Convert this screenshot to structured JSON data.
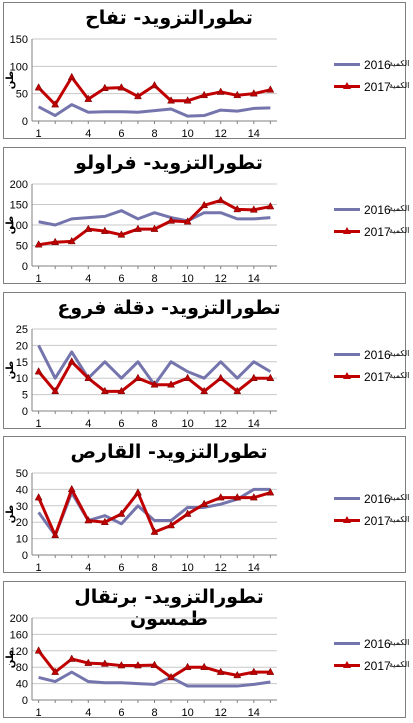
{
  "chart_data": [
    {
      "type": "line",
      "title": "تطورالتزويد- تفاح",
      "ylabel": "طن",
      "ylim": [
        0,
        150
      ],
      "yticks": [
        0,
        50,
        100,
        150
      ],
      "x": [
        1,
        2,
        3,
        4,
        5,
        6,
        7,
        8,
        9,
        10,
        11,
        12,
        13,
        14,
        15
      ],
      "xticks": [
        1,
        4,
        6,
        8,
        10,
        12,
        14
      ],
      "series": [
        {
          "year": "2016",
          "name": "الكمية",
          "color": "#7575ad",
          "marker": false,
          "values": [
            26,
            10,
            30,
            16,
            17,
            17,
            16,
            19,
            22,
            9,
            10,
            20,
            18,
            23,
            24
          ]
        },
        {
          "year": "2017",
          "name": "الكمية",
          "color": "#c00000",
          "marker": true,
          "values": [
            61,
            30,
            80,
            40,
            60,
            61,
            45,
            65,
            37,
            37,
            47,
            53,
            47,
            50,
            57
          ]
        }
      ]
    },
    {
      "type": "line",
      "title": "تطورالتزويد- فراولو",
      "ylabel": "طن",
      "ylim": [
        0,
        200
      ],
      "yticks": [
        0,
        50,
        100,
        150,
        200
      ],
      "x": [
        1,
        2,
        3,
        4,
        5,
        6,
        7,
        8,
        9,
        10,
        11,
        12,
        13,
        14,
        15
      ],
      "xticks": [
        1,
        4,
        6,
        8,
        10,
        12,
        14
      ],
      "series": [
        {
          "year": "2016",
          "name": "الكمية",
          "color": "#7575ad",
          "marker": false,
          "values": [
            108,
            100,
            115,
            118,
            121,
            135,
            115,
            130,
            118,
            110,
            130,
            130,
            115,
            115,
            118
          ]
        },
        {
          "year": "2017",
          "name": "الكمية",
          "color": "#c00000",
          "marker": true,
          "values": [
            52,
            58,
            60,
            90,
            85,
            76,
            90,
            90,
            110,
            108,
            148,
            160,
            138,
            137,
            145
          ]
        }
      ]
    },
    {
      "type": "line",
      "title": "تطورالتزويد- دقلة فروع",
      "ylabel": "طن",
      "ylim": [
        0,
        25
      ],
      "yticks": [
        0,
        5,
        10,
        15,
        20,
        25
      ],
      "x": [
        1,
        2,
        3,
        4,
        5,
        6,
        7,
        8,
        9,
        10,
        11,
        12,
        13,
        14,
        15
      ],
      "xticks": [
        1,
        4,
        6,
        8,
        10,
        12,
        14
      ],
      "series": [
        {
          "year": "2016",
          "name": "الكمية",
          "color": "#7575ad",
          "marker": false,
          "values": [
            20,
            10,
            18,
            10,
            15,
            10,
            15,
            8,
            15,
            12,
            10,
            15,
            10,
            15,
            12
          ]
        },
        {
          "year": "2017",
          "name": "الكمية",
          "color": "#c00000",
          "marker": true,
          "values": [
            12,
            6,
            15,
            10,
            6,
            6,
            10,
            8,
            8,
            10,
            6,
            10,
            6,
            10,
            10
          ]
        }
      ]
    },
    {
      "type": "line",
      "title": "تطورالتزويد- القارص",
      "ylabel": "طن",
      "ylim": [
        0,
        50
      ],
      "yticks": [
        0,
        10,
        20,
        30,
        40,
        50
      ],
      "x": [
        1,
        2,
        3,
        4,
        5,
        6,
        7,
        8,
        9,
        10,
        11,
        12,
        13,
        14,
        15
      ],
      "xticks": [
        1,
        4,
        6,
        8,
        10,
        12,
        14
      ],
      "series": [
        {
          "year": "2016",
          "name": "الكمية",
          "color": "#7575ad",
          "marker": false,
          "values": [
            26,
            12,
            38,
            21,
            24,
            19,
            30,
            21,
            21,
            29,
            29,
            31,
            34,
            40,
            40
          ]
        },
        {
          "year": "2017",
          "name": "الكمية",
          "color": "#c00000",
          "marker": true,
          "values": [
            35,
            12,
            40,
            21,
            20,
            25,
            38,
            14,
            18,
            25,
            31,
            35,
            35,
            35,
            38
          ]
        }
      ]
    },
    {
      "type": "line",
      "title": "تطورالتزويد- برتقال طمسون",
      "ylabel": "طن",
      "ylim": [
        0,
        200
      ],
      "yticks": [
        0,
        40,
        80,
        120,
        160,
        200
      ],
      "x": [
        1,
        2,
        3,
        4,
        5,
        6,
        7,
        8,
        9,
        10,
        11,
        12,
        13,
        14,
        15
      ],
      "xticks": [
        1,
        4,
        6,
        8,
        10,
        12,
        14
      ],
      "series": [
        {
          "year": "2016",
          "name": "الكمية",
          "color": "#7575ad",
          "marker": false,
          "values": [
            55,
            45,
            68,
            45,
            42,
            42,
            40,
            38,
            55,
            34,
            34,
            34,
            34,
            38,
            44
          ]
        },
        {
          "year": "2017",
          "name": "الكمية",
          "color": "#c00000",
          "marker": true,
          "values": [
            120,
            68,
            100,
            90,
            88,
            84,
            84,
            85,
            55,
            80,
            80,
            68,
            60,
            68,
            68
          ]
        }
      ]
    }
  ]
}
